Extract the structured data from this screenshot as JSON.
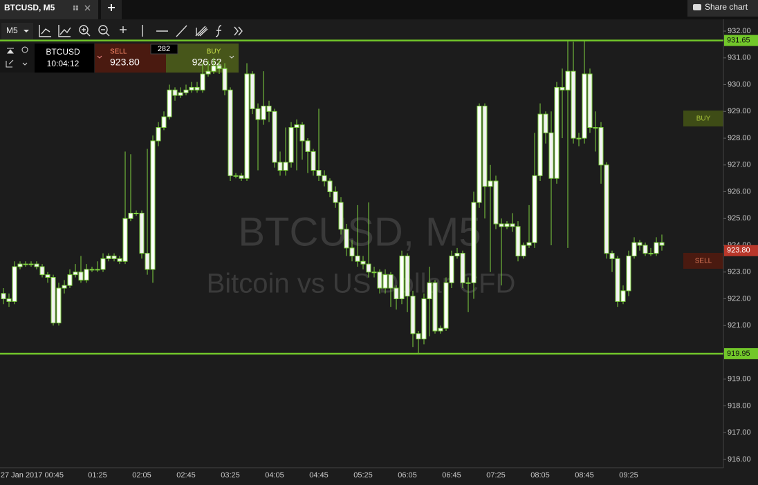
{
  "tab": {
    "title": "BTCUSD, M5",
    "share": "Share chart"
  },
  "toolbar": {
    "timeframe": "M5"
  },
  "order_panel": {
    "symbol": "BTCUSD",
    "time": "10:04:12",
    "sell_label": "SELL",
    "sell_price": "923.80",
    "spread": "282",
    "buy_label": "BUY",
    "buy_price": "926.62"
  },
  "side_buttons": {
    "buy": "BUY",
    "sell": "SELL"
  },
  "chart_data": {
    "type": "candlestick",
    "title": "BTCUSD, M5",
    "subtitle": "Bitcoin vs US Dollar CFD",
    "categories": [
      null,
      null,
      null,
      null,
      null,
      null,
      null,
      null,
      null,
      "27 Jan 2017 00:45",
      null,
      null,
      null,
      null,
      null,
      null,
      null,
      "01:25",
      null,
      null,
      null,
      null,
      null,
      null,
      null,
      "02:05",
      null,
      null,
      null,
      null,
      null,
      null,
      null,
      "02:45",
      null,
      null,
      null,
      null,
      null,
      null,
      null,
      "03:25",
      null,
      null,
      null,
      null,
      null,
      null,
      null,
      "04:05",
      null,
      null,
      null,
      null,
      null,
      null,
      null,
      "04:45",
      null,
      null,
      null,
      null,
      null,
      null,
      null,
      "05:25",
      null,
      null,
      null,
      null,
      null,
      null,
      null,
      "06:05",
      null,
      null,
      null,
      null,
      null,
      null,
      null,
      "06:45",
      null,
      null,
      null,
      null,
      null,
      null,
      null,
      "07:25",
      null,
      null,
      null,
      null,
      null,
      null,
      null,
      "08:05",
      null,
      null,
      null,
      null,
      null,
      null,
      null,
      "08:45",
      null,
      null,
      null,
      null,
      null,
      null,
      null,
      "09:25",
      null,
      null,
      null,
      null,
      null,
      null
    ],
    "open": [
      922.2,
      922.0,
      921.9,
      923.2,
      923.3,
      923.3,
      923.3,
      923.2,
      922.9,
      922.8,
      921.1,
      922.4,
      922.5,
      922.9,
      923.0,
      922.7,
      923.1,
      923.1,
      923.1,
      923.5,
      923.6,
      923.5,
      923.4,
      925.0,
      925.2,
      925.2,
      923.7,
      923.1,
      927.9,
      928.4,
      928.8,
      929.8,
      929.6,
      929.7,
      929.8,
      929.9,
      929.8,
      930.4,
      930.5,
      930.7,
      930.6,
      929.8,
      926.6,
      926.6,
      926.5,
      930.4,
      929.1,
      928.7,
      929.2,
      929.0,
      927.1,
      926.8,
      927.1,
      928.4,
      928.5,
      927.9,
      927.5,
      926.8,
      926.6,
      926.4,
      926.0,
      925.6,
      924.6,
      923.9,
      923.6,
      923.4,
      923.3,
      923.0,
      923.0,
      922.4,
      922.9,
      922.4,
      922.0,
      923.6,
      922.1,
      920.7,
      920.5,
      922.0,
      922.6,
      920.8,
      920.9,
      922.6,
      923.6,
      923.7,
      922.6,
      922.6,
      925.6,
      929.2,
      926.2,
      926.4,
      924.8,
      924.7,
      924.8,
      924.7,
      923.6,
      924.0,
      924.1,
      926.6,
      928.9,
      928.2,
      926.5,
      929.9,
      929.8,
      930.5,
      928.0,
      928.0,
      930.4,
      928.4,
      928.4,
      927.0,
      923.7,
      923.5,
      921.9,
      922.3,
      923.6,
      924.1,
      924.0,
      923.7,
      923.7,
      924.1
    ],
    "high": [
      922.4,
      922.2,
      923.4,
      923.4,
      923.4,
      923.4,
      923.4,
      923.3,
      923.0,
      922.9,
      922.6,
      922.7,
      923.1,
      923.3,
      923.6,
      923.3,
      923.2,
      923.4,
      923.7,
      923.7,
      923.7,
      923.6,
      927.5,
      927.4,
      925.3,
      925.3,
      927.6,
      928.1,
      928.6,
      929.0,
      930.0,
      929.9,
      929.9,
      930.0,
      930.1,
      930.1,
      930.8,
      930.9,
      931.0,
      930.9,
      930.8,
      929.9,
      926.7,
      926.7,
      930.8,
      930.5,
      929.3,
      930.5,
      929.4,
      929.1,
      927.5,
      928.4,
      928.6,
      928.7,
      928.6,
      928.0,
      927.6,
      929.1,
      926.8,
      926.5,
      926.2,
      925.8,
      924.8,
      924.2,
      925.5,
      923.6,
      925.6,
      923.2,
      923.1,
      923.1,
      923.0,
      922.5,
      923.8,
      923.7,
      922.3,
      920.8,
      922.2,
      923.2,
      922.7,
      921.0,
      922.8,
      923.8,
      923.9,
      923.8,
      922.8,
      926.0,
      929.3,
      929.3,
      927.0,
      926.6,
      925.0,
      924.9,
      925.2,
      924.9,
      924.1,
      925.5,
      928.2,
      929.3,
      929.0,
      929.0,
      930.1,
      930.6,
      931.65,
      931.6,
      928.2,
      931.65,
      930.6,
      929.0,
      928.6,
      927.1,
      923.8,
      923.6,
      922.5,
      923.8,
      924.3,
      924.2,
      924.1,
      923.9,
      924.3,
      924.4
    ],
    "low": [
      921.8,
      921.7,
      921.8,
      923.1,
      923.2,
      923.2,
      923.1,
      922.8,
      922.6,
      921.0,
      921.0,
      922.2,
      922.4,
      922.8,
      922.6,
      922.6,
      923.0,
      923.0,
      923.0,
      923.4,
      923.4,
      923.3,
      923.3,
      924.9,
      925.1,
      923.5,
      922.9,
      922.6,
      927.7,
      928.3,
      928.7,
      929.4,
      929.5,
      929.6,
      929.7,
      929.7,
      929.7,
      930.3,
      930.4,
      930.4,
      929.6,
      926.4,
      926.5,
      926.4,
      926.4,
      928.9,
      926.8,
      928.5,
      928.6,
      926.9,
      926.6,
      926.6,
      926.9,
      926.8,
      927.2,
      926.7,
      926.6,
      926.4,
      926.2,
      925.8,
      925.4,
      924.4,
      923.6,
      923.4,
      923.2,
      923.1,
      922.8,
      922.8,
      922.2,
      922.2,
      921.7,
      921.6,
      921.8,
      921.5,
      920.2,
      919.95,
      920.3,
      920.6,
      920.7,
      920.7,
      920.8,
      922.4,
      923.5,
      922.4,
      921.5,
      922.0,
      925.4,
      925.0,
      923.0,
      924.6,
      922.5,
      924.6,
      924.5,
      923.4,
      923.5,
      923.9,
      923.9,
      926.4,
      927.8,
      924.0,
      926.3,
      928.0,
      923.9,
      927.8,
      927.7,
      927.8,
      928.2,
      927.5,
      926.3,
      923.5,
      923.0,
      921.7,
      921.8,
      922.1,
      923.5,
      923.8,
      923.6,
      923.6,
      923.6,
      923.8
    ],
    "close": [
      922.0,
      921.9,
      923.2,
      923.3,
      923.3,
      923.3,
      923.2,
      922.9,
      922.8,
      921.1,
      922.4,
      922.5,
      922.9,
      923.0,
      922.7,
      923.1,
      923.1,
      923.1,
      923.5,
      923.6,
      923.5,
      923.4,
      925.0,
      925.2,
      925.2,
      923.7,
      923.1,
      927.9,
      928.4,
      928.8,
      929.8,
      929.6,
      929.7,
      929.8,
      929.9,
      929.8,
      930.4,
      930.5,
      930.7,
      930.6,
      929.8,
      926.6,
      926.6,
      926.5,
      930.4,
      929.1,
      928.7,
      929.2,
      929.0,
      927.1,
      926.8,
      927.1,
      928.4,
      928.5,
      927.9,
      927.5,
      926.8,
      926.6,
      926.4,
      926.0,
      925.6,
      924.6,
      923.9,
      923.6,
      923.4,
      923.3,
      923.0,
      923.0,
      922.4,
      922.9,
      922.4,
      922.0,
      923.6,
      922.1,
      920.7,
      920.5,
      922.0,
      922.6,
      920.8,
      920.9,
      922.6,
      923.6,
      923.7,
      922.6,
      922.6,
      925.6,
      929.2,
      926.2,
      926.4,
      924.8,
      924.7,
      924.8,
      924.7,
      923.6,
      924.0,
      924.1,
      926.6,
      928.9,
      928.2,
      926.5,
      929.9,
      929.8,
      930.5,
      928.0,
      928.0,
      930.4,
      928.4,
      928.4,
      927.0,
      923.7,
      923.5,
      921.9,
      922.3,
      923.6,
      924.1,
      924.0,
      923.7,
      923.7,
      924.1,
      924.0
    ],
    "up_color": "#ffffff",
    "down_color": "#f2f2f2",
    "wick_color": "#7fd33f",
    "ylim": [
      915.69,
      932.44
    ],
    "yticks": [
      {
        "value": 916,
        "label": "916.00"
      },
      {
        "value": 917,
        "label": "917.00"
      },
      {
        "value": 918,
        "label": "918.00"
      },
      {
        "value": 919,
        "label": "919.00"
      },
      {
        "value": 920,
        "label": "920.00"
      },
      {
        "value": 921,
        "label": "921.00"
      },
      {
        "value": 922,
        "label": "922.00"
      },
      {
        "value": 923,
        "label": "923.00"
      },
      {
        "value": 924,
        "label": "924.00"
      },
      {
        "value": 925,
        "label": "925.00"
      },
      {
        "value": 926,
        "label": "926.00"
      },
      {
        "value": 927,
        "label": "927.00"
      },
      {
        "value": 928,
        "label": "928.00"
      },
      {
        "value": 929,
        "label": "929.00"
      },
      {
        "value": 930,
        "label": "930.00"
      },
      {
        "value": 931,
        "label": "931.00"
      },
      {
        "value": 932,
        "label": "932.00"
      }
    ],
    "levels": [
      931.65,
      919.95
    ],
    "level_color": "#72c72a",
    "current_price": {
      "value": 923.8,
      "label": "923.80"
    },
    "current_color": "#b8372a",
    "grid": false
  }
}
